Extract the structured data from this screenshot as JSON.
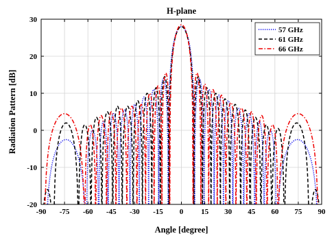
{
  "chart_data": {
    "type": "line",
    "title": "H-plane",
    "xlabel": "Angle [degree]",
    "ylabel": "Radiation Pattern [dB]",
    "xlim": [
      -90,
      90
    ],
    "ylim": [
      -20,
      30
    ],
    "xticks": [
      -90,
      -75,
      -60,
      -45,
      -30,
      -15,
      0,
      15,
      30,
      45,
      60,
      75,
      90
    ],
    "yticks": [
      -20,
      -10,
      0,
      10,
      20,
      30
    ],
    "grid": true,
    "legend_position": "top-right",
    "peak_dB": 28,
    "series": [
      {
        "name": "57 GHz",
        "color": "#0000ee",
        "style": "dotted",
        "lobes": [
          {
            "from": -90,
            "to": -72,
            "peak": -20
          },
          {
            "from": -87,
            "to": -61,
            "peak": -2.5
          },
          {
            "from": -61,
            "to": -53,
            "peak": 0
          },
          {
            "from": -53,
            "to": -47,
            "peak": 2.5
          },
          {
            "from": -47,
            "to": -40,
            "peak": 4.5
          },
          {
            "from": -40,
            "to": -33,
            "peak": 5.5
          },
          {
            "from": -33,
            "to": -27,
            "peak": 7
          },
          {
            "from": -27,
            "to": -21,
            "peak": 9
          },
          {
            "from": -21,
            "to": -14.5,
            "peak": 11
          },
          {
            "from": -14.5,
            "to": -8.5,
            "peak": 14
          },
          {
            "from": -8.5,
            "to": 8.5,
            "peak": 28
          },
          {
            "from": 8.5,
            "to": 14.5,
            "peak": 14
          },
          {
            "from": 14.5,
            "to": 21,
            "peak": 11
          },
          {
            "from": 21,
            "to": 27,
            "peak": 9.5
          },
          {
            "from": 27,
            "to": 33,
            "peak": 8
          },
          {
            "from": 33,
            "to": 40,
            "peak": 6
          },
          {
            "from": 40,
            "to": 47,
            "peak": 4.5
          },
          {
            "from": 47,
            "to": 53,
            "peak": 2.5
          },
          {
            "from": 53,
            "to": 61,
            "peak": 0
          },
          {
            "from": 61,
            "to": 88,
            "peak": -2.5
          }
        ]
      },
      {
        "name": "61 GHz",
        "color": "#000000",
        "style": "dashed",
        "lobes": [
          {
            "from": -90,
            "to": -82,
            "peak": -16
          },
          {
            "from": -82,
            "to": -66,
            "peak": 2
          },
          {
            "from": -66,
            "to": -58,
            "peak": 1.5
          },
          {
            "from": -58,
            "to": -51,
            "peak": 3.5
          },
          {
            "from": -51,
            "to": -44,
            "peak": 5
          },
          {
            "from": -44,
            "to": -38,
            "peak": 6.5
          },
          {
            "from": -38,
            "to": -31,
            "peak": 6.5
          },
          {
            "from": -31,
            "to": -25,
            "peak": 8
          },
          {
            "from": -25,
            "to": -19,
            "peak": 10
          },
          {
            "from": -19,
            "to": -13.5,
            "peak": 11.5
          },
          {
            "from": -13.5,
            "to": -8,
            "peak": 14.5
          },
          {
            "from": -8,
            "to": 8,
            "peak": 28
          },
          {
            "from": 8,
            "to": 13.5,
            "peak": 14.5
          },
          {
            "from": 13.5,
            "to": 19,
            "peak": 11.5
          },
          {
            "from": 19,
            "to": 25,
            "peak": 10
          },
          {
            "from": 25,
            "to": 31,
            "peak": 8.5
          },
          {
            "from": 31,
            "to": 38,
            "peak": 7
          },
          {
            "from": 38,
            "to": 44,
            "peak": 5.5
          },
          {
            "from": 44,
            "to": 51,
            "peak": 3.5
          },
          {
            "from": 51,
            "to": 58,
            "peak": 1.5
          },
          {
            "from": 58,
            "to": 66,
            "peak": 0.5
          },
          {
            "from": 66,
            "to": 82,
            "peak": 2
          },
          {
            "from": 82,
            "to": 90,
            "peak": -16
          }
        ]
      },
      {
        "name": "66 GHz",
        "color": "#ee0000",
        "style": "dashdot",
        "lobes": [
          {
            "from": -88,
            "to": -62,
            "peak": 4.5
          },
          {
            "from": -62,
            "to": -55,
            "peak": 1.5
          },
          {
            "from": -55,
            "to": -48,
            "peak": 4
          },
          {
            "from": -48,
            "to": -42,
            "peak": 5
          },
          {
            "from": -42,
            "to": -35,
            "peak": 6
          },
          {
            "from": -35,
            "to": -28.5,
            "peak": 6.5
          },
          {
            "from": -28.5,
            "to": -23,
            "peak": 7
          },
          {
            "from": -23,
            "to": -17.5,
            "peak": 10
          },
          {
            "from": -17.5,
            "to": -12.5,
            "peak": 12
          },
          {
            "from": -12.5,
            "to": -7.5,
            "peak": 15.5
          },
          {
            "from": -7.5,
            "to": 7.5,
            "peak": 28.5
          },
          {
            "from": 7.5,
            "to": 12.5,
            "peak": 15.5
          },
          {
            "from": 12.5,
            "to": 17.5,
            "peak": 12.5
          },
          {
            "from": 17.5,
            "to": 23,
            "peak": 11
          },
          {
            "from": 23,
            "to": 28.5,
            "peak": 9.5
          },
          {
            "from": 28.5,
            "to": 35,
            "peak": 7.5
          },
          {
            "from": 35,
            "to": 42,
            "peak": 6
          },
          {
            "from": 42,
            "to": 48,
            "peak": 5
          },
          {
            "from": 48,
            "to": 55,
            "peak": 4
          },
          {
            "from": 55,
            "to": 62,
            "peak": 1.5
          },
          {
            "from": 62,
            "to": 88,
            "peak": 4.5
          }
        ]
      }
    ]
  }
}
